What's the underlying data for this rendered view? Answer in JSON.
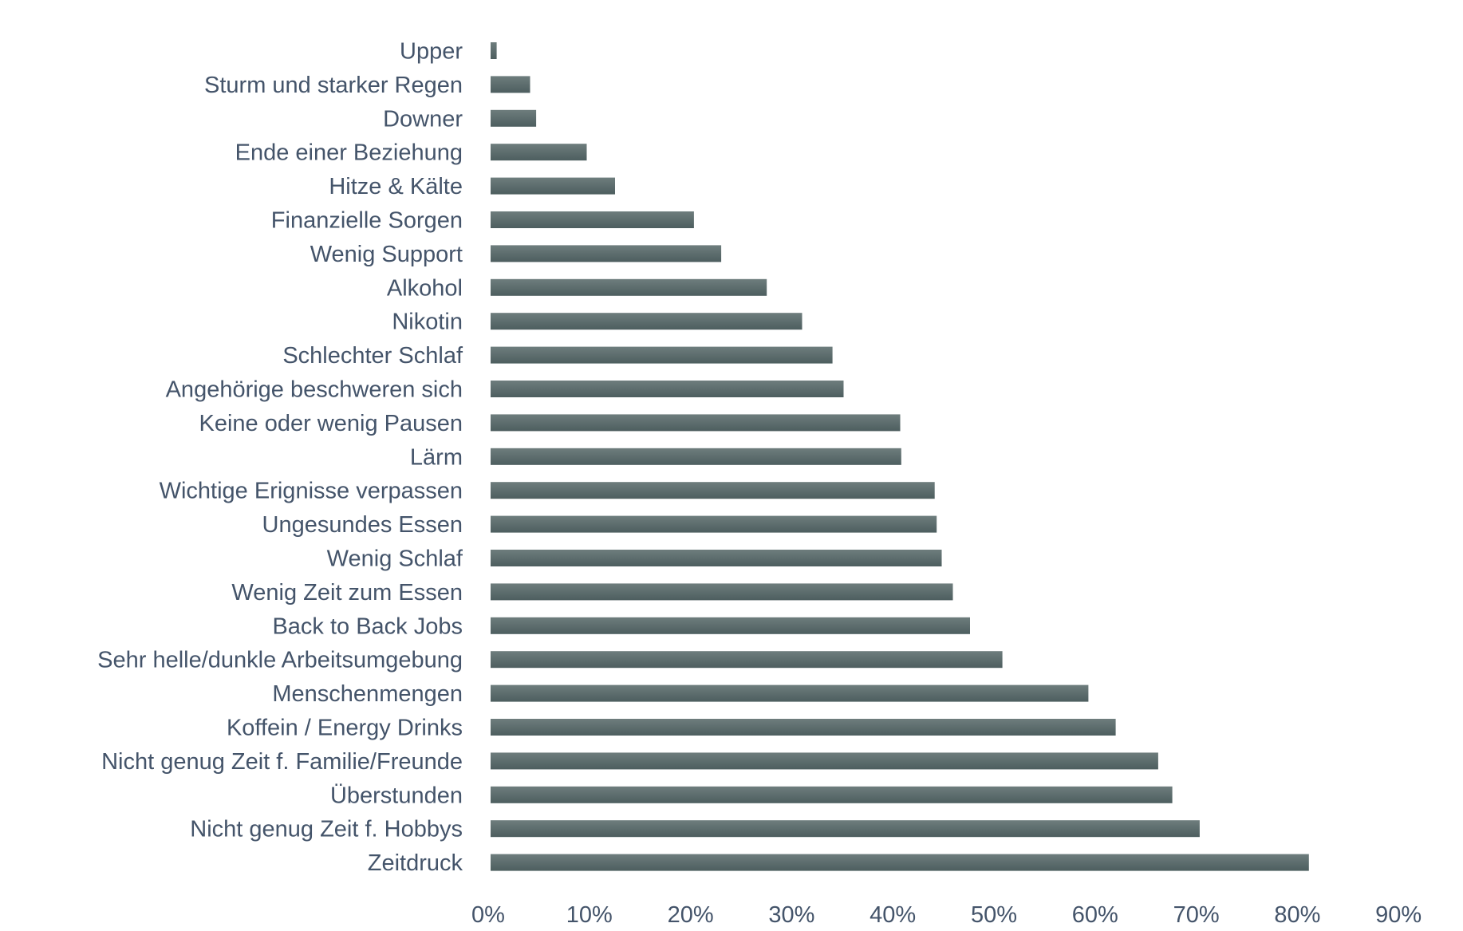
{
  "chart_data": {
    "type": "bar",
    "orientation": "horizontal",
    "title": "",
    "xlabel": "",
    "ylabel": "",
    "xlim": [
      0,
      90
    ],
    "x_ticks": [
      0,
      10,
      20,
      30,
      40,
      50,
      60,
      70,
      80,
      90
    ],
    "x_tick_labels": [
      "0%",
      "10%",
      "20%",
      "30%",
      "40%",
      "50%",
      "60%",
      "70%",
      "80%",
      "90%"
    ],
    "grid": false,
    "legend": "none",
    "categories": [
      "Upper",
      "Sturm und starker Regen",
      "Downer",
      "Ende einer Beziehung",
      "Hitze & Kälte",
      "Finanzielle Sorgen",
      "Wenig Support",
      "Alkohol",
      "Nikotin",
      "Schlechter Schlaf",
      "Angehörige beschweren sich",
      "Keine oder wenig Pausen",
      "Lärm",
      "Wichtige Erignisse verpassen",
      "Ungesundes Essen",
      "Wenig Schlaf",
      "Wenig Zeit zum Essen",
      "Back to Back Jobs",
      "Sehr helle/dunkle Arbeitsumgebung",
      "Menschenmengen",
      "Koffein / Energy Drinks",
      "Nicht genug Zeit f. Familie/Freunde",
      "Überstunden",
      "Nicht genug Zeit f. Hobbys",
      "Zeitdruck"
    ],
    "values": [
      0.6,
      3.9,
      4.5,
      9.5,
      12.3,
      20.1,
      22.8,
      27.3,
      30.8,
      33.8,
      34.9,
      40.5,
      40.6,
      43.9,
      44.1,
      44.6,
      45.7,
      47.4,
      50.6,
      59.1,
      61.8,
      66.0,
      67.4,
      70.1,
      80.9
    ],
    "unit": "%",
    "colors": {
      "bar_top": "#6e7d7d",
      "bar_bottom": "#4d5e5f",
      "text": "#44546a"
    }
  }
}
